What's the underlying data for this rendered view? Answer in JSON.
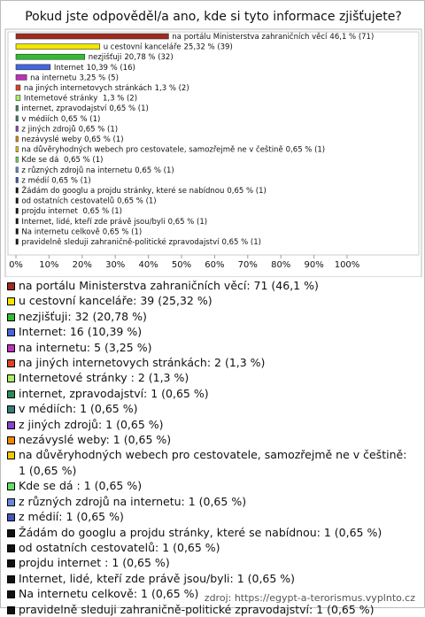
{
  "chart_data": {
    "type": "hbar",
    "title": "Pokud jste odpověděl/a ano, kde si tyto informace zjišťujete?",
    "categories": [
      "na portálu Ministerstva zahraničních věcí",
      "u cestovní kanceláře",
      "nezjišťuji",
      "Internet",
      "na internetu",
      "na jiných internetovych stránkách",
      "Internetové stránky ",
      "internet, zpravodajství",
      "v médiích",
      "z jiných zdrojů",
      "nezávyslé weby",
      "na důvěryhodných webech pro cestovatele, samozřejmě ne v češtině",
      "Kde se dá ",
      "z různých zdrojů na internetu",
      "z médií",
      "Žádám do googlu a projdu stránky, které se nabídnou",
      "od ostatních cestovatelů",
      "projdu internet ",
      "Internet, lidé, kteří zde právě jsou/byli",
      "Na internetu celkově",
      "pravidelně sleduji zahraničně-politické zpravodajství"
    ],
    "values": [
      46.1,
      25.32,
      20.78,
      10.39,
      3.25,
      1.3,
      1.3,
      0.65,
      0.65,
      0.65,
      0.65,
      0.65,
      0.65,
      0.65,
      0.65,
      0.65,
      0.65,
      0.65,
      0.65,
      0.65,
      0.65
    ],
    "counts": [
      71,
      39,
      32,
      16,
      5,
      2,
      2,
      1,
      1,
      1,
      1,
      1,
      1,
      1,
      1,
      1,
      1,
      1,
      1,
      1,
      1
    ],
    "value_labels": [
      "46,1 % (71)",
      "25,32 % (39)",
      "20,78 % (32)",
      "10,39 % (16)",
      "3,25 % (5)",
      "1,3 % (2)",
      "1,3 % (2)",
      "0,65 % (1)",
      "0,65 % (1)",
      "0,65 % (1)",
      "0,65 % (1)",
      "0,65 % (1)",
      "0,65 % (1)",
      "0,65 % (1)",
      "0,65 % (1)",
      "0,65 % (1)",
      "0,65 % (1)",
      "0,65 % (1)",
      "0,65 % (1)",
      "0,65 % (1)",
      "0,65 % (1)"
    ],
    "legend_labels": [
      "na portálu Ministerstva zahraničních věcí: 71 (46,1 %)",
      "u cestovní kanceláře: 39 (25,32 %)",
      "nezjišťuji: 32 (20,78 %)",
      "Internet: 16 (10,39 %)",
      "na internetu: 5 (3,25 %)",
      "na jiných internetovych stránkách: 2 (1,3 %)",
      "Internetové stránky : 2 (1,3 %)",
      "internet, zpravodajství: 1 (0,65 %)",
      "v médiích: 1 (0,65 %)",
      "z jiných zdrojů: 1 (0,65 %)",
      "nezávyslé weby: 1 (0,65 %)",
      "na důvěryhodných webech pro cestovatele, samozřejmě ne v češtině: 1 (0,65 %)",
      "Kde se dá : 1 (0,65 %)",
      "z různých zdrojů na internetu: 1 (0,65 %)",
      "z médií: 1 (0,65 %)",
      "Žádám do googlu a projdu stránky, které se nabídnou: 1 (0,65 %)",
      "od ostatních cestovatelů: 1 (0,65 %)",
      "projdu internet : 1 (0,65 %)",
      "Internet, lidé, kteří zde právě jsou/byli: 1 (0,65 %)",
      "Na internetu celkově: 1 (0,65 %)",
      "pravidelně sleduji zahraničně-politické zpravodajství: 1 (0,65 %)"
    ],
    "colors": [
      "#a02a1e",
      "#f2e600",
      "#33bb33",
      "#4466dd",
      "#bb33bb",
      "#dd4422",
      "#aaee66",
      "#2e8b57",
      "#3a7a7a",
      "#8844cc",
      "#ee8800",
      "#eecc00",
      "#66dd66",
      "#6688dd",
      "#4455bb",
      "#111111",
      "#111111",
      "#111111",
      "#111111",
      "#111111",
      "#111111"
    ],
    "xlim": [
      0,
      100
    ],
    "xticks": [
      {
        "value": 0,
        "label": "0%"
      },
      {
        "value": 10,
        "label": "10%"
      },
      {
        "value": 20,
        "label": "20%"
      },
      {
        "value": 30,
        "label": "30%"
      },
      {
        "value": 40,
        "label": "40%"
      },
      {
        "value": 50,
        "label": "50%"
      },
      {
        "value": 60,
        "label": "60%"
      },
      {
        "value": 70,
        "label": "70%"
      },
      {
        "value": 80,
        "label": "80%"
      },
      {
        "value": 90,
        "label": "90%"
      },
      {
        "value": 100,
        "label": "100%"
      }
    ],
    "source": "zdroj: https://egypt-a-terorismus.vyplnto.cz"
  }
}
